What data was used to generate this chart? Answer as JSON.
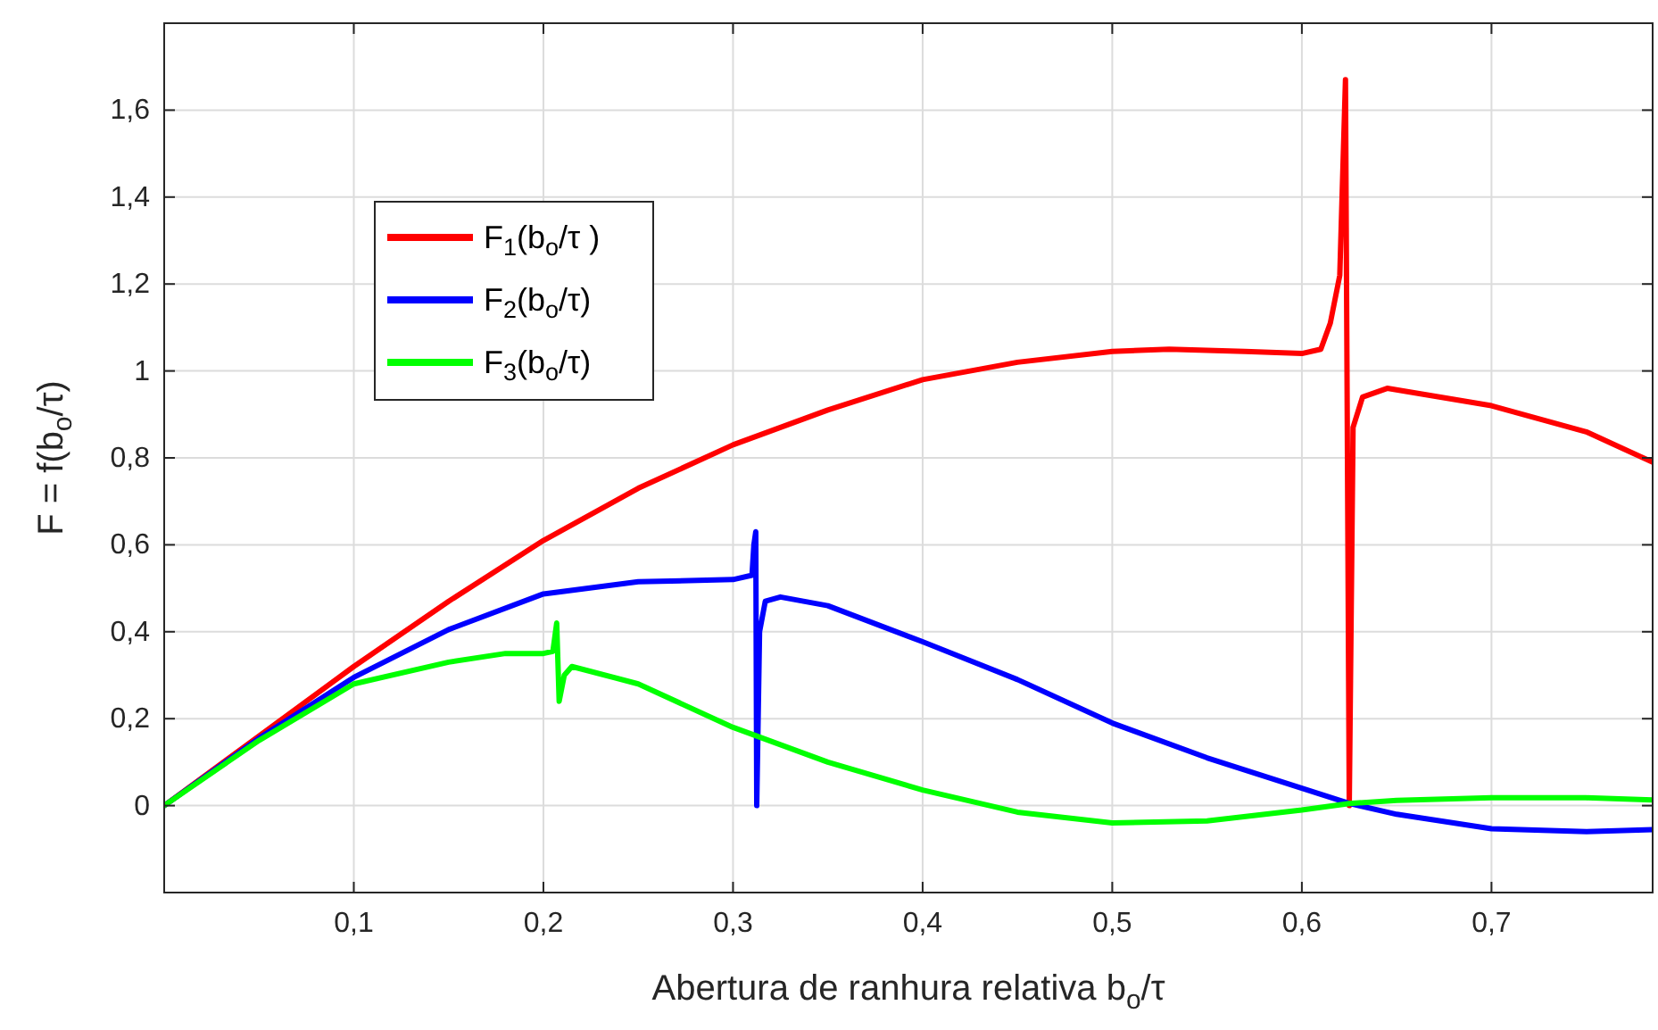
{
  "chart_data": {
    "type": "line",
    "xlabel": "Abertura de ranhura relativa  b$_{o}$/τ",
    "ylabel": "F = f(b$_{o}$/τ)",
    "xlim": [
      0,
      0.785
    ],
    "ylim": [
      -0.2,
      1.8
    ],
    "xticks": [
      {
        "value": 0.1,
        "label": "0,1"
      },
      {
        "value": 0.2,
        "label": "0,2"
      },
      {
        "value": 0.3,
        "label": "0,3"
      },
      {
        "value": 0.4,
        "label": "0,4"
      },
      {
        "value": 0.5,
        "label": "0,5"
      },
      {
        "value": 0.6,
        "label": "0,6"
      },
      {
        "value": 0.7,
        "label": "0,7"
      }
    ],
    "yticks": [
      0,
      {
        "value": 0.2,
        "label": "0,2"
      },
      {
        "value": 0.4,
        "label": "0,4"
      },
      {
        "value": 0.6,
        "label": "0,6"
      },
      {
        "value": 0.8,
        "label": "0,8"
      },
      1,
      {
        "value": 1.2,
        "label": "1,2"
      },
      {
        "value": 1.4,
        "label": "1,4"
      },
      {
        "value": 1.6,
        "label": "1,6"
      }
    ],
    "grid": true,
    "legend": "top left",
    "marker": "none",
    "line_style": "solid",
    "series": [
      {
        "name": "F$_{1}$(b$_{o}$/τ )",
        "color": "#ff0000",
        "x": [
          0,
          0.05,
          0.1,
          0.15,
          0.2,
          0.25,
          0.3,
          0.35,
          0.4,
          0.45,
          0.5,
          0.53,
          0.57,
          0.6,
          0.61,
          0.615,
          0.62,
          0.623,
          0.625,
          0.627,
          0.632,
          0.645,
          0.7,
          0.75,
          0.785
        ],
        "values": [
          0,
          0.16,
          0.32,
          0.47,
          0.61,
          0.73,
          0.83,
          0.91,
          0.98,
          1.02,
          1.045,
          1.05,
          1.045,
          1.04,
          1.05,
          1.11,
          1.22,
          1.67,
          0,
          0.87,
          0.94,
          0.96,
          0.92,
          0.86,
          0.79
        ]
      },
      {
        "name": "F$_{2}$(b$_{o}$/τ)",
        "color": "#0000ff",
        "x": [
          0,
          0.05,
          0.1,
          0.15,
          0.2,
          0.25,
          0.3,
          0.31,
          0.311,
          0.312,
          0.3125,
          0.314,
          0.317,
          0.325,
          0.35,
          0.4,
          0.45,
          0.5,
          0.55,
          0.6,
          0.625,
          0.65,
          0.7,
          0.75,
          0.785
        ],
        "values": [
          0,
          0.155,
          0.295,
          0.405,
          0.487,
          0.515,
          0.52,
          0.53,
          0.6,
          0.63,
          0,
          0.4,
          0.47,
          0.48,
          0.46,
          0.377,
          0.29,
          0.19,
          0.11,
          0.04,
          0.005,
          -0.02,
          -0.053,
          -0.06,
          -0.055
        ]
      },
      {
        "name": "F$_{3}$(b$_{o}$/τ)",
        "color": "#00ff00",
        "x": [
          0,
          0.05,
          0.1,
          0.15,
          0.18,
          0.2,
          0.205,
          0.207,
          0.2083,
          0.211,
          0.215,
          0.25,
          0.3,
          0.35,
          0.4,
          0.45,
          0.5,
          0.55,
          0.6,
          0.625,
          0.65,
          0.7,
          0.75,
          0.785
        ],
        "values": [
          0,
          0.15,
          0.28,
          0.33,
          0.35,
          0.35,
          0.355,
          0.42,
          0.24,
          0.3,
          0.32,
          0.28,
          0.18,
          0.1,
          0.036,
          -0.015,
          -0.04,
          -0.035,
          -0.01,
          0.005,
          0.012,
          0.018,
          0.018,
          0.013
        ]
      }
    ]
  }
}
